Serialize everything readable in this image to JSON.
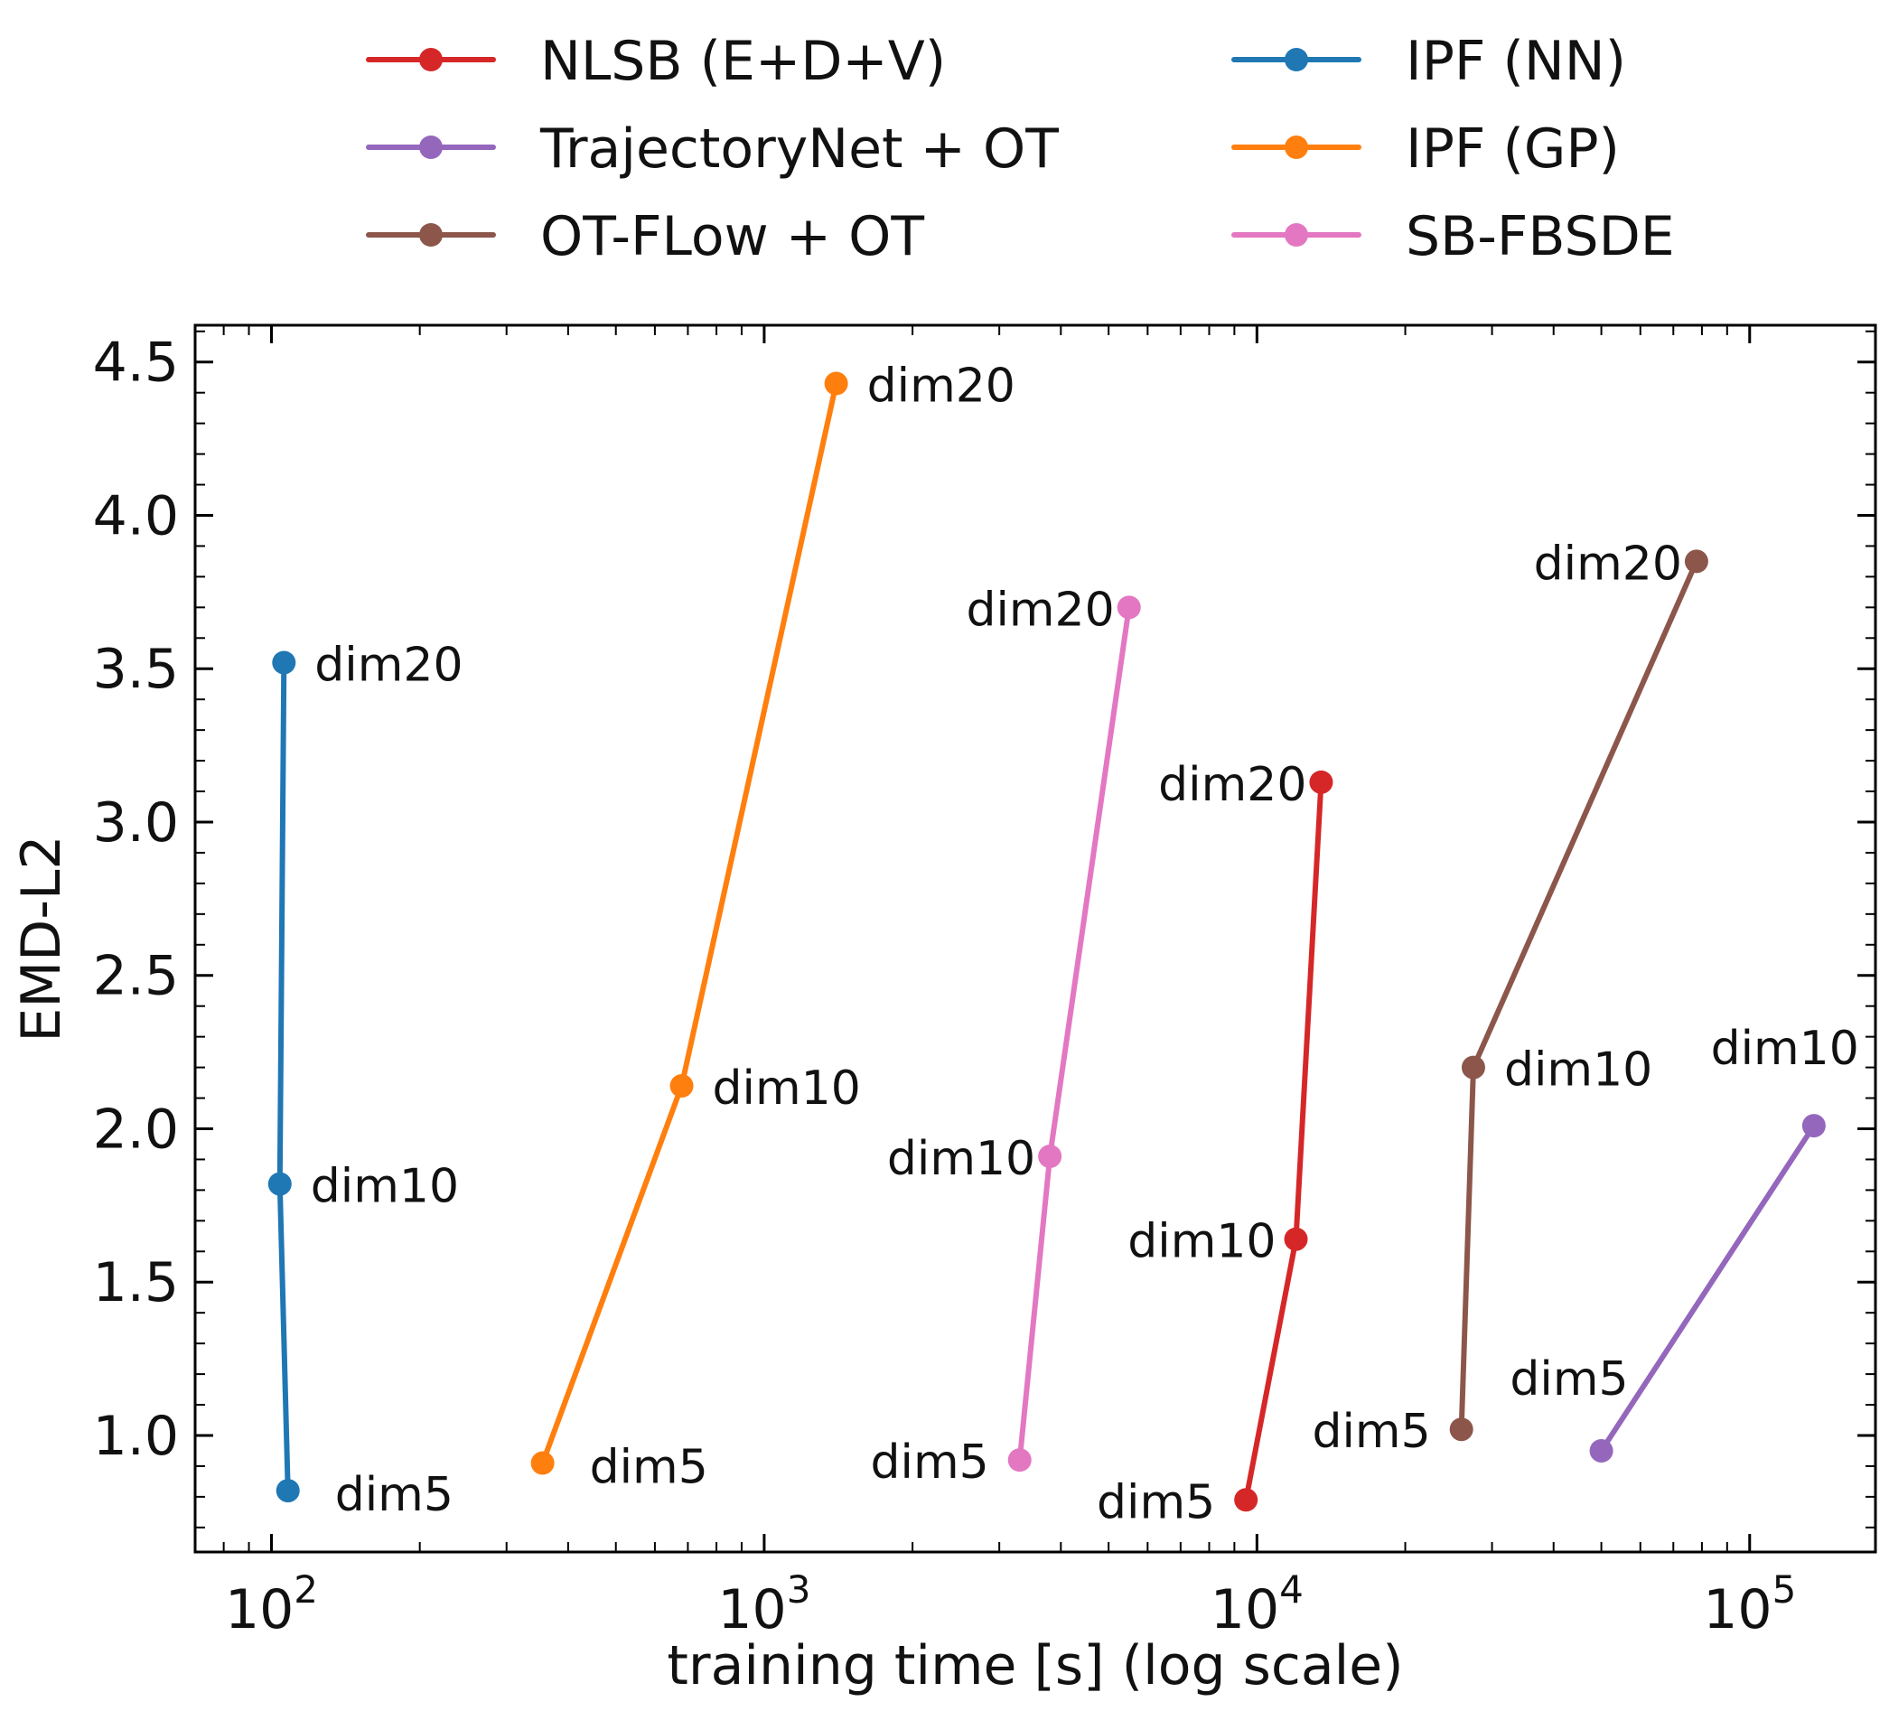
{
  "chart_data": {
    "type": "line",
    "title": "",
    "xlabel": "training time [s] (log scale)",
    "ylabel": "EMD-L2",
    "x_scale": "log",
    "xlim": [
      70,
      180000
    ],
    "ylim": [
      0.62,
      4.62
    ],
    "x_ticks": [
      {
        "value": 100,
        "base": "10",
        "exp": "2"
      },
      {
        "value": 1000,
        "base": "10",
        "exp": "3"
      },
      {
        "value": 10000,
        "base": "10",
        "exp": "4"
      },
      {
        "value": 100000,
        "base": "10",
        "exp": "5"
      }
    ],
    "y_ticks": [
      {
        "value": 1.0,
        "label": "1.0"
      },
      {
        "value": 1.5,
        "label": "1.5"
      },
      {
        "value": 2.0,
        "label": "2.0"
      },
      {
        "value": 2.5,
        "label": "2.5"
      },
      {
        "value": 3.0,
        "label": "3.0"
      },
      {
        "value": 3.5,
        "label": "3.5"
      },
      {
        "value": 4.0,
        "label": "4.0"
      },
      {
        "value": 4.5,
        "label": "4.5"
      }
    ],
    "grid": false,
    "legend_position": "top, outside plot, 2 columns",
    "series": [
      {
        "name": "NLSB (E+D+V)",
        "color": "#d62728",
        "points": [
          {
            "x": 9500,
            "y": 0.79,
            "label": "dim5"
          },
          {
            "x": 12000,
            "y": 1.64,
            "label": "dim10"
          },
          {
            "x": 13500,
            "y": 3.13,
            "label": "dim20"
          }
        ]
      },
      {
        "name": "TrajectoryNet + OT",
        "color": "#9467bd",
        "points": [
          {
            "x": 50000,
            "y": 0.95,
            "label": "dim5"
          },
          {
            "x": 135000,
            "y": 2.01,
            "label": "dim10"
          }
        ]
      },
      {
        "name": "OT-FLow + OT",
        "color": "#8c564b",
        "points": [
          {
            "x": 26000,
            "y": 1.02,
            "label": "dim5"
          },
          {
            "x": 27500,
            "y": 2.2,
            "label": "dim10"
          },
          {
            "x": 78000,
            "y": 3.85,
            "label": "dim20"
          }
        ]
      },
      {
        "name": "IPF (NN)",
        "color": "#1f77b4",
        "points": [
          {
            "x": 108,
            "y": 0.82,
            "label": "dim5"
          },
          {
            "x": 104,
            "y": 1.82,
            "label": "dim10"
          },
          {
            "x": 106,
            "y": 3.52,
            "label": "dim20"
          }
        ]
      },
      {
        "name": "IPF (GP)",
        "color": "#ff7f0e",
        "points": [
          {
            "x": 355,
            "y": 0.91,
            "label": "dim5"
          },
          {
            "x": 680,
            "y": 2.14,
            "label": "dim10"
          },
          {
            "x": 1400,
            "y": 4.43,
            "label": "dim20"
          }
        ]
      },
      {
        "name": "SB-FBSDE",
        "color": "#e377c2",
        "points": [
          {
            "x": 3300,
            "y": 0.92,
            "label": "dim5"
          },
          {
            "x": 3800,
            "y": 1.91,
            "label": "dim10"
          },
          {
            "x": 5500,
            "y": 3.7,
            "label": "dim20"
          }
        ]
      }
    ]
  }
}
